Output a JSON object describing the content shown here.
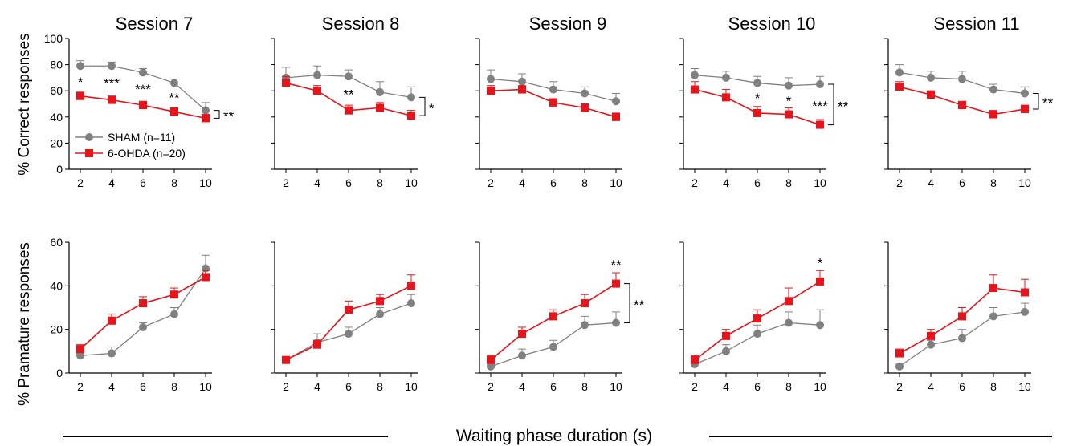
{
  "figure": {
    "ylabel_top": "% Correct responses",
    "ylabel_bottom": "% Pramature responses",
    "xlabel": "Waiting phase duration (s)",
    "legend": {
      "sham": "SHAM (n=11)",
      "ohda": "6-OHDA (n=20)"
    },
    "colors": {
      "sham": "#808080",
      "ohda": "#e8141b",
      "axis": "#000000"
    },
    "panel_titles": [
      "Session 7",
      "Session 8",
      "Session 9",
      "Session 10",
      "Session 11"
    ]
  },
  "chart_data": [
    {
      "type": "line",
      "row": "correct",
      "title": "Session 7",
      "x": [
        2,
        4,
        6,
        8,
        10
      ],
      "ylim": [
        0,
        100
      ],
      "yticks": [
        0,
        20,
        40,
        60,
        80,
        100
      ],
      "series": [
        {
          "name": "SHAM (n=11)",
          "values": [
            79,
            79,
            74,
            66,
            45
          ],
          "errors": [
            4,
            3,
            3,
            3,
            6
          ]
        },
        {
          "name": "6-OHDA (n=20)",
          "values": [
            56,
            53,
            49,
            44,
            39
          ],
          "errors": [
            3,
            3,
            3,
            3,
            3
          ]
        }
      ],
      "point_annotations": [
        "*",
        "***",
        "***",
        "**",
        ""
      ],
      "bracket": "**"
    },
    {
      "type": "line",
      "row": "correct",
      "title": "Session 8",
      "x": [
        2,
        4,
        6,
        8,
        10
      ],
      "ylim": [
        0,
        100
      ],
      "series": [
        {
          "name": "SHAM (n=11)",
          "values": [
            70,
            72,
            71,
            59,
            55
          ],
          "errors": [
            8,
            7,
            5,
            8,
            8
          ]
        },
        {
          "name": "6-OHDA (n=20)",
          "values": [
            66,
            60,
            45,
            47,
            41
          ],
          "errors": [
            5,
            4,
            4,
            4,
            4
          ]
        }
      ],
      "point_annotations": [
        "",
        "",
        "**",
        "",
        ""
      ],
      "bracket": "*"
    },
    {
      "type": "line",
      "row": "correct",
      "title": "Session 9",
      "x": [
        2,
        4,
        6,
        8,
        10
      ],
      "ylim": [
        0,
        100
      ],
      "series": [
        {
          "name": "SHAM (n=11)",
          "values": [
            69,
            67,
            61,
            58,
            52
          ],
          "errors": [
            7,
            6,
            6,
            5,
            6
          ]
        },
        {
          "name": "6-OHDA (n=20)",
          "values": [
            60,
            61,
            51,
            47,
            40
          ],
          "errors": [
            4,
            3,
            3,
            3,
            3
          ]
        }
      ],
      "point_annotations": [
        "",
        "",
        "",
        "",
        ""
      ],
      "bracket": ""
    },
    {
      "type": "line",
      "row": "correct",
      "title": "Session 10",
      "x": [
        2,
        4,
        6,
        8,
        10
      ],
      "ylim": [
        0,
        100
      ],
      "series": [
        {
          "name": "SHAM (n=11)",
          "values": [
            72,
            70,
            66,
            64,
            65
          ],
          "errors": [
            5,
            5,
            5,
            6,
            6
          ]
        },
        {
          "name": "6-OHDA (n=20)",
          "values": [
            61,
            55,
            43,
            42,
            34
          ],
          "errors": [
            6,
            6,
            5,
            5,
            4
          ]
        }
      ],
      "point_annotations": [
        "",
        "",
        "*",
        "*",
        "***"
      ],
      "bracket": "**"
    },
    {
      "type": "line",
      "row": "correct",
      "title": "Session 11",
      "x": [
        2,
        4,
        6,
        8,
        10
      ],
      "ylim": [
        0,
        100
      ],
      "series": [
        {
          "name": "SHAM (n=11)",
          "values": [
            74,
            70,
            69,
            61,
            58
          ],
          "errors": [
            6,
            5,
            6,
            4,
            5
          ]
        },
        {
          "name": "6-OHDA (n=20)",
          "values": [
            63,
            57,
            49,
            42,
            46
          ],
          "errors": [
            4,
            3,
            3,
            3,
            3
          ]
        }
      ],
      "point_annotations": [
        "",
        "",
        "",
        "",
        ""
      ],
      "bracket": "**"
    },
    {
      "type": "line",
      "row": "premature",
      "x": [
        2,
        4,
        6,
        8,
        10
      ],
      "ylim": [
        0,
        60
      ],
      "yticks": [
        0,
        20,
        40,
        60
      ],
      "series": [
        {
          "name": "SHAM (n=11)",
          "values": [
            8,
            9,
            21,
            27,
            48
          ],
          "errors": [
            1,
            3,
            2,
            3,
            6
          ]
        },
        {
          "name": "6-OHDA (n=20)",
          "values": [
            11,
            24,
            32,
            36,
            44
          ],
          "errors": [
            2,
            3,
            3,
            3,
            3
          ]
        }
      ],
      "point_annotations": [
        "",
        "",
        "",
        "",
        ""
      ],
      "bracket": ""
    },
    {
      "type": "line",
      "row": "premature",
      "x": [
        2,
        4,
        6,
        8,
        10
      ],
      "ylim": [
        0,
        60
      ],
      "series": [
        {
          "name": "SHAM (n=11)",
          "values": [
            6,
            14,
            18,
            27,
            32
          ],
          "errors": [
            1,
            4,
            3,
            3,
            4
          ]
        },
        {
          "name": "6-OHDA (n=20)",
          "values": [
            6,
            13,
            29,
            33,
            40
          ],
          "errors": [
            1,
            2,
            4,
            3,
            5
          ]
        }
      ],
      "point_annotations": [
        "",
        "",
        "",
        "",
        ""
      ],
      "bracket": ""
    },
    {
      "type": "line",
      "row": "premature",
      "x": [
        2,
        4,
        6,
        8,
        10
      ],
      "ylim": [
        0,
        60
      ],
      "series": [
        {
          "name": "SHAM (n=11)",
          "values": [
            3,
            8,
            12,
            22,
            23
          ],
          "errors": [
            1,
            3,
            3,
            4,
            5
          ]
        },
        {
          "name": "6-OHDA (n=20)",
          "values": [
            6,
            18,
            26,
            32,
            41
          ],
          "errors": [
            2,
            3,
            3,
            4,
            5
          ]
        }
      ],
      "point_annotations": [
        "",
        "",
        "",
        "",
        "**"
      ],
      "bracket": "**"
    },
    {
      "type": "line",
      "row": "premature",
      "x": [
        2,
        4,
        6,
        8,
        10
      ],
      "ylim": [
        0,
        60
      ],
      "series": [
        {
          "name": "SHAM (n=11)",
          "values": [
            4,
            10,
            18,
            23,
            22
          ],
          "errors": [
            1,
            3,
            4,
            5,
            7
          ]
        },
        {
          "name": "6-OHDA (n=20)",
          "values": [
            6,
            17,
            25,
            33,
            42
          ],
          "errors": [
            2,
            3,
            4,
            6,
            5
          ]
        }
      ],
      "point_annotations": [
        "",
        "",
        "",
        "",
        "*"
      ],
      "bracket": ""
    },
    {
      "type": "line",
      "row": "premature",
      "x": [
        2,
        4,
        6,
        8,
        10
      ],
      "ylim": [
        0,
        60
      ],
      "series": [
        {
          "name": "SHAM (n=11)",
          "values": [
            3,
            13,
            16,
            26,
            28
          ],
          "errors": [
            1,
            2,
            4,
            4,
            4
          ]
        },
        {
          "name": "6-OHDA (n=20)",
          "values": [
            9,
            17,
            26,
            39,
            37
          ],
          "errors": [
            2,
            3,
            4,
            6,
            6
          ]
        }
      ],
      "point_annotations": [
        "",
        "",
        "",
        "",
        ""
      ],
      "bracket": ""
    }
  ]
}
